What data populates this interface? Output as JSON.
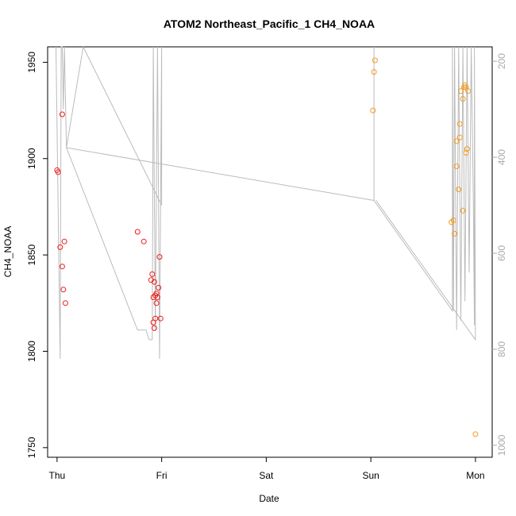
{
  "chart_data": {
    "type": "scatter",
    "title": "ATOM2 Northeast_Pacific_1 CH4_NOAA",
    "xlabel": "Date",
    "ylabel": "CH4_NOAA",
    "x_ticks": [
      "Thu",
      "Fri",
      "Sat",
      "Sun",
      "Mon"
    ],
    "y_ticks": [
      1750,
      1800,
      1850,
      1900,
      1950
    ],
    "y2_ticks": [
      200,
      400,
      600,
      800,
      1000
    ],
    "ylim": [
      1745,
      1958
    ],
    "y2lim": [
      1025,
      170
    ],
    "xlim": [
      -0.09,
      4.16
    ],
    "grid": false,
    "colors": {
      "red_series": "#ee1c1c",
      "orange_series": "#f59b20",
      "profile_line": "#bbbbbb"
    },
    "series": [
      {
        "color": "red",
        "points": [
          {
            "x": 0.0,
            "y": 1894
          },
          {
            "x": 0.01,
            "y": 1893
          },
          {
            "x": 0.03,
            "y": 1854
          },
          {
            "x": 0.05,
            "y": 1923
          },
          {
            "x": 0.05,
            "y": 1844
          },
          {
            "x": 0.06,
            "y": 1832
          },
          {
            "x": 0.07,
            "y": 1857
          },
          {
            "x": 0.08,
            "y": 1825
          },
          {
            "x": 0.77,
            "y": 1862
          },
          {
            "x": 0.83,
            "y": 1857
          },
          {
            "x": 0.9,
            "y": 1837
          },
          {
            "x": 0.91,
            "y": 1840
          },
          {
            "x": 0.92,
            "y": 1828
          },
          {
            "x": 0.92,
            "y": 1815
          },
          {
            "x": 0.93,
            "y": 1836
          },
          {
            "x": 0.93,
            "y": 1812
          },
          {
            "x": 0.94,
            "y": 1817
          },
          {
            "x": 0.94,
            "y": 1829
          },
          {
            "x": 0.95,
            "y": 1825
          },
          {
            "x": 0.95,
            "y": 1830
          },
          {
            "x": 0.96,
            "y": 1828
          },
          {
            "x": 0.97,
            "y": 1833
          },
          {
            "x": 0.98,
            "y": 1849
          },
          {
            "x": 0.99,
            "y": 1817
          }
        ]
      },
      {
        "color": "orange",
        "points": [
          {
            "x": 3.02,
            "y": 1925
          },
          {
            "x": 3.03,
            "y": 1945
          },
          {
            "x": 3.04,
            "y": 1951
          },
          {
            "x": 3.77,
            "y": 1867
          },
          {
            "x": 3.79,
            "y": 1868
          },
          {
            "x": 3.8,
            "y": 1861
          },
          {
            "x": 3.82,
            "y": 1896
          },
          {
            "x": 3.82,
            "y": 1909
          },
          {
            "x": 3.84,
            "y": 1884
          },
          {
            "x": 3.85,
            "y": 1911
          },
          {
            "x": 3.85,
            "y": 1918
          },
          {
            "x": 3.86,
            "y": 1935
          },
          {
            "x": 3.88,
            "y": 1873
          },
          {
            "x": 3.88,
            "y": 1931
          },
          {
            "x": 3.89,
            "y": 1937
          },
          {
            "x": 3.9,
            "y": 1938
          },
          {
            "x": 3.91,
            "y": 1937
          },
          {
            "x": 3.91,
            "y": 1903
          },
          {
            "x": 3.92,
            "y": 1905
          },
          {
            "x": 3.93,
            "y": 1935
          },
          {
            "x": 4.0,
            "y": 1757
          }
        ]
      }
    ],
    "profile_line": {
      "axis": "right",
      "points": [
        {
          "x": -0.01,
          "y": 150
        },
        {
          "x": 0.03,
          "y": 820
        },
        {
          "x": 0.04,
          "y": 150
        },
        {
          "x": 0.05,
          "y": 150
        },
        {
          "x": 0.06,
          "y": 300
        },
        {
          "x": 0.07,
          "y": 150
        },
        {
          "x": 0.09,
          "y": 380
        },
        {
          "x": 0.25,
          "y": 150
        },
        {
          "x": 1.0,
          "y": 500
        },
        {
          "x": 1.0,
          "y": 150
        },
        {
          "x": 0.98,
          "y": 820
        },
        {
          "x": 0.96,
          "y": 150
        },
        {
          "x": 0.94,
          "y": 760
        },
        {
          "x": 0.92,
          "y": 150
        },
        {
          "x": 0.91,
          "y": 780
        },
        {
          "x": 0.88,
          "y": 780
        },
        {
          "x": 0.85,
          "y": 760
        },
        {
          "x": 0.77,
          "y": 760
        },
        {
          "x": 0.09,
          "y": 380
        },
        {
          "x": 3.03,
          "y": 490
        },
        {
          "x": 3.03,
          "y": 150
        },
        {
          "x": 3.03,
          "y": 490
        },
        {
          "x": 3.78,
          "y": 720
        },
        {
          "x": 3.78,
          "y": 150
        },
        {
          "x": 3.79,
          "y": 720
        },
        {
          "x": 3.8,
          "y": 150
        },
        {
          "x": 3.82,
          "y": 760
        },
        {
          "x": 3.84,
          "y": 150
        },
        {
          "x": 3.86,
          "y": 740
        },
        {
          "x": 3.88,
          "y": 150
        },
        {
          "x": 3.9,
          "y": 700
        },
        {
          "x": 3.92,
          "y": 150
        },
        {
          "x": 3.94,
          "y": 640
        },
        {
          "x": 3.96,
          "y": 150
        },
        {
          "x": 3.98,
          "y": 500
        },
        {
          "x": 3.99,
          "y": 750
        },
        {
          "x": 3.99,
          "y": 150
        },
        {
          "x": 4.0,
          "y": 780
        },
        {
          "x": 3.05,
          "y": 490
        }
      ]
    }
  }
}
